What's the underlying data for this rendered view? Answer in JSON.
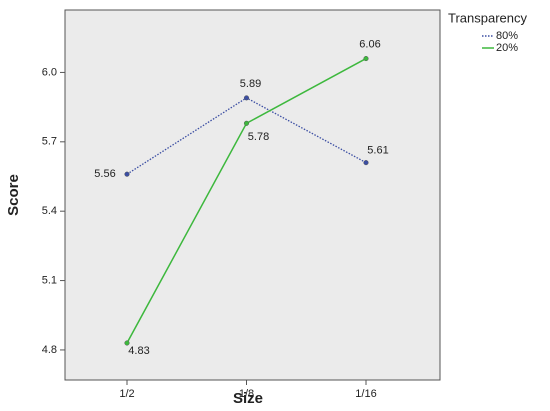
{
  "chart_data": {
    "type": "line",
    "x_label": "Size",
    "y_label": "Score",
    "categories": [
      "1/2",
      "1/8",
      "1/16"
    ],
    "series": [
      {
        "name": "80%",
        "color": "#3b4ea3",
        "style": "dotted",
        "values": [
          5.56,
          5.89,
          5.61
        ]
      },
      {
        "name": "20%",
        "color": "#3db83d",
        "style": "solid",
        "values": [
          4.83,
          5.78,
          6.06
        ]
      }
    ],
    "ylim": [
      4.67,
      6.27
    ],
    "yticks": [
      4.8,
      5.1,
      5.4,
      5.7,
      {
        "value": 6,
        "label": "6.0"
      }
    ],
    "legend_title": "Transparency",
    "legend_position": "right",
    "grid": false,
    "data_labels": true
  }
}
